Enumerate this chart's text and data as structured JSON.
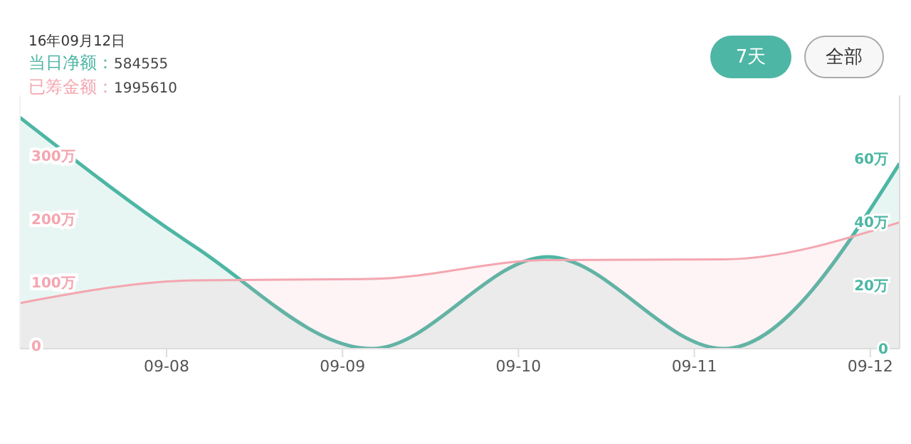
{
  "chart_data": {
    "type": "area",
    "title": "16年09月12日",
    "x": [
      "--09-07T04:00",
      "--09-08T04:00",
      "--09-09T04:00",
      "--09-10T04:00",
      "--09-11T04:00",
      "--09-12T04:00"
    ],
    "series": [
      {
        "name": "当日净额：",
        "color": "#4db6a4",
        "axis": "y2",
        "values": [
          73,
          32,
          0,
          29,
          0,
          58.5
        ]
      },
      {
        "name": "已筹金额：",
        "color": "#f4a6b0",
        "values": [
          72,
          108,
          110,
          140,
          141,
          199.6
        ]
      }
    ],
    "annotations": [
      "584555",
      "1995610",
      "7天",
      "全部"
    ],
    "xlim": [
      "--09-07T04:00",
      "--09-12T04:00"
    ],
    "xticks": [
      {
        "value": "--09-08T00:00",
        "label": "09-08"
      },
      {
        "value": "--09-09T00:00",
        "label": "09-09"
      },
      {
        "value": "--09-10T00:00",
        "label": "09-10"
      },
      {
        "value": "--09-11T00:00",
        "label": "09-11"
      },
      {
        "value": "--09-12T00:00",
        "label": "09-12"
      }
    ],
    "ylim": [
      0,
      400
    ],
    "yticks": [
      0,
      {
        "value": 100,
        "label": "100万"
      },
      {
        "value": 200,
        "label": "200万"
      },
      {
        "value": 300,
        "label": "300万"
      }
    ],
    "y2lim": [
      0,
      80
    ],
    "y2ticks": [
      0,
      {
        "value": 20,
        "label": "20万"
      },
      {
        "value": 40,
        "label": "40万"
      },
      {
        "value": 60,
        "label": "60万"
      }
    ]
  }
}
